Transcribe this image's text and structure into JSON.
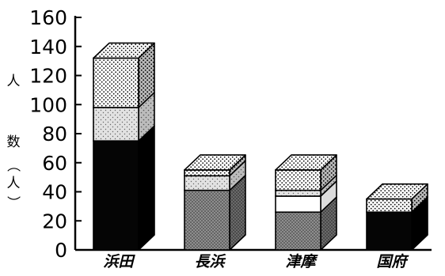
{
  "chart_data": {
    "type": "bar",
    "stacked": true,
    "three_d": true,
    "ylabel": "人数（人）",
    "ylabel_chars": [
      "人",
      "数",
      "（",
      "人",
      "）"
    ],
    "ylim": [
      0,
      160
    ],
    "yticks": [
      0,
      20,
      40,
      60,
      80,
      100,
      120,
      140,
      160
    ],
    "categories": [
      "浜田",
      "長浜",
      "津摩",
      "国府"
    ],
    "bars": [
      {
        "category": "浜田",
        "segments": [
          {
            "fill": "black",
            "value": 75
          },
          {
            "fill": "light-dots",
            "value": 23
          },
          {
            "fill": "cross-dots",
            "value": 34
          }
        ]
      },
      {
        "category": "長浜",
        "segments": [
          {
            "fill": "gray-dots",
            "value": 41
          },
          {
            "fill": "light-dots",
            "value": 10
          },
          {
            "fill": "cross-dots",
            "value": 4
          }
        ]
      },
      {
        "category": "津摩",
        "segments": [
          {
            "fill": "gray-dots",
            "value": 26
          },
          {
            "fill": "white",
            "value": 11
          },
          {
            "fill": "light-dots",
            "value": 4
          },
          {
            "fill": "cross-dots",
            "value": 14
          }
        ]
      },
      {
        "category": "国府",
        "segments": [
          {
            "fill": "black",
            "value": 26
          },
          {
            "fill": "cross-dots",
            "value": 9
          }
        ]
      }
    ],
    "grid": false,
    "legend": false
  }
}
